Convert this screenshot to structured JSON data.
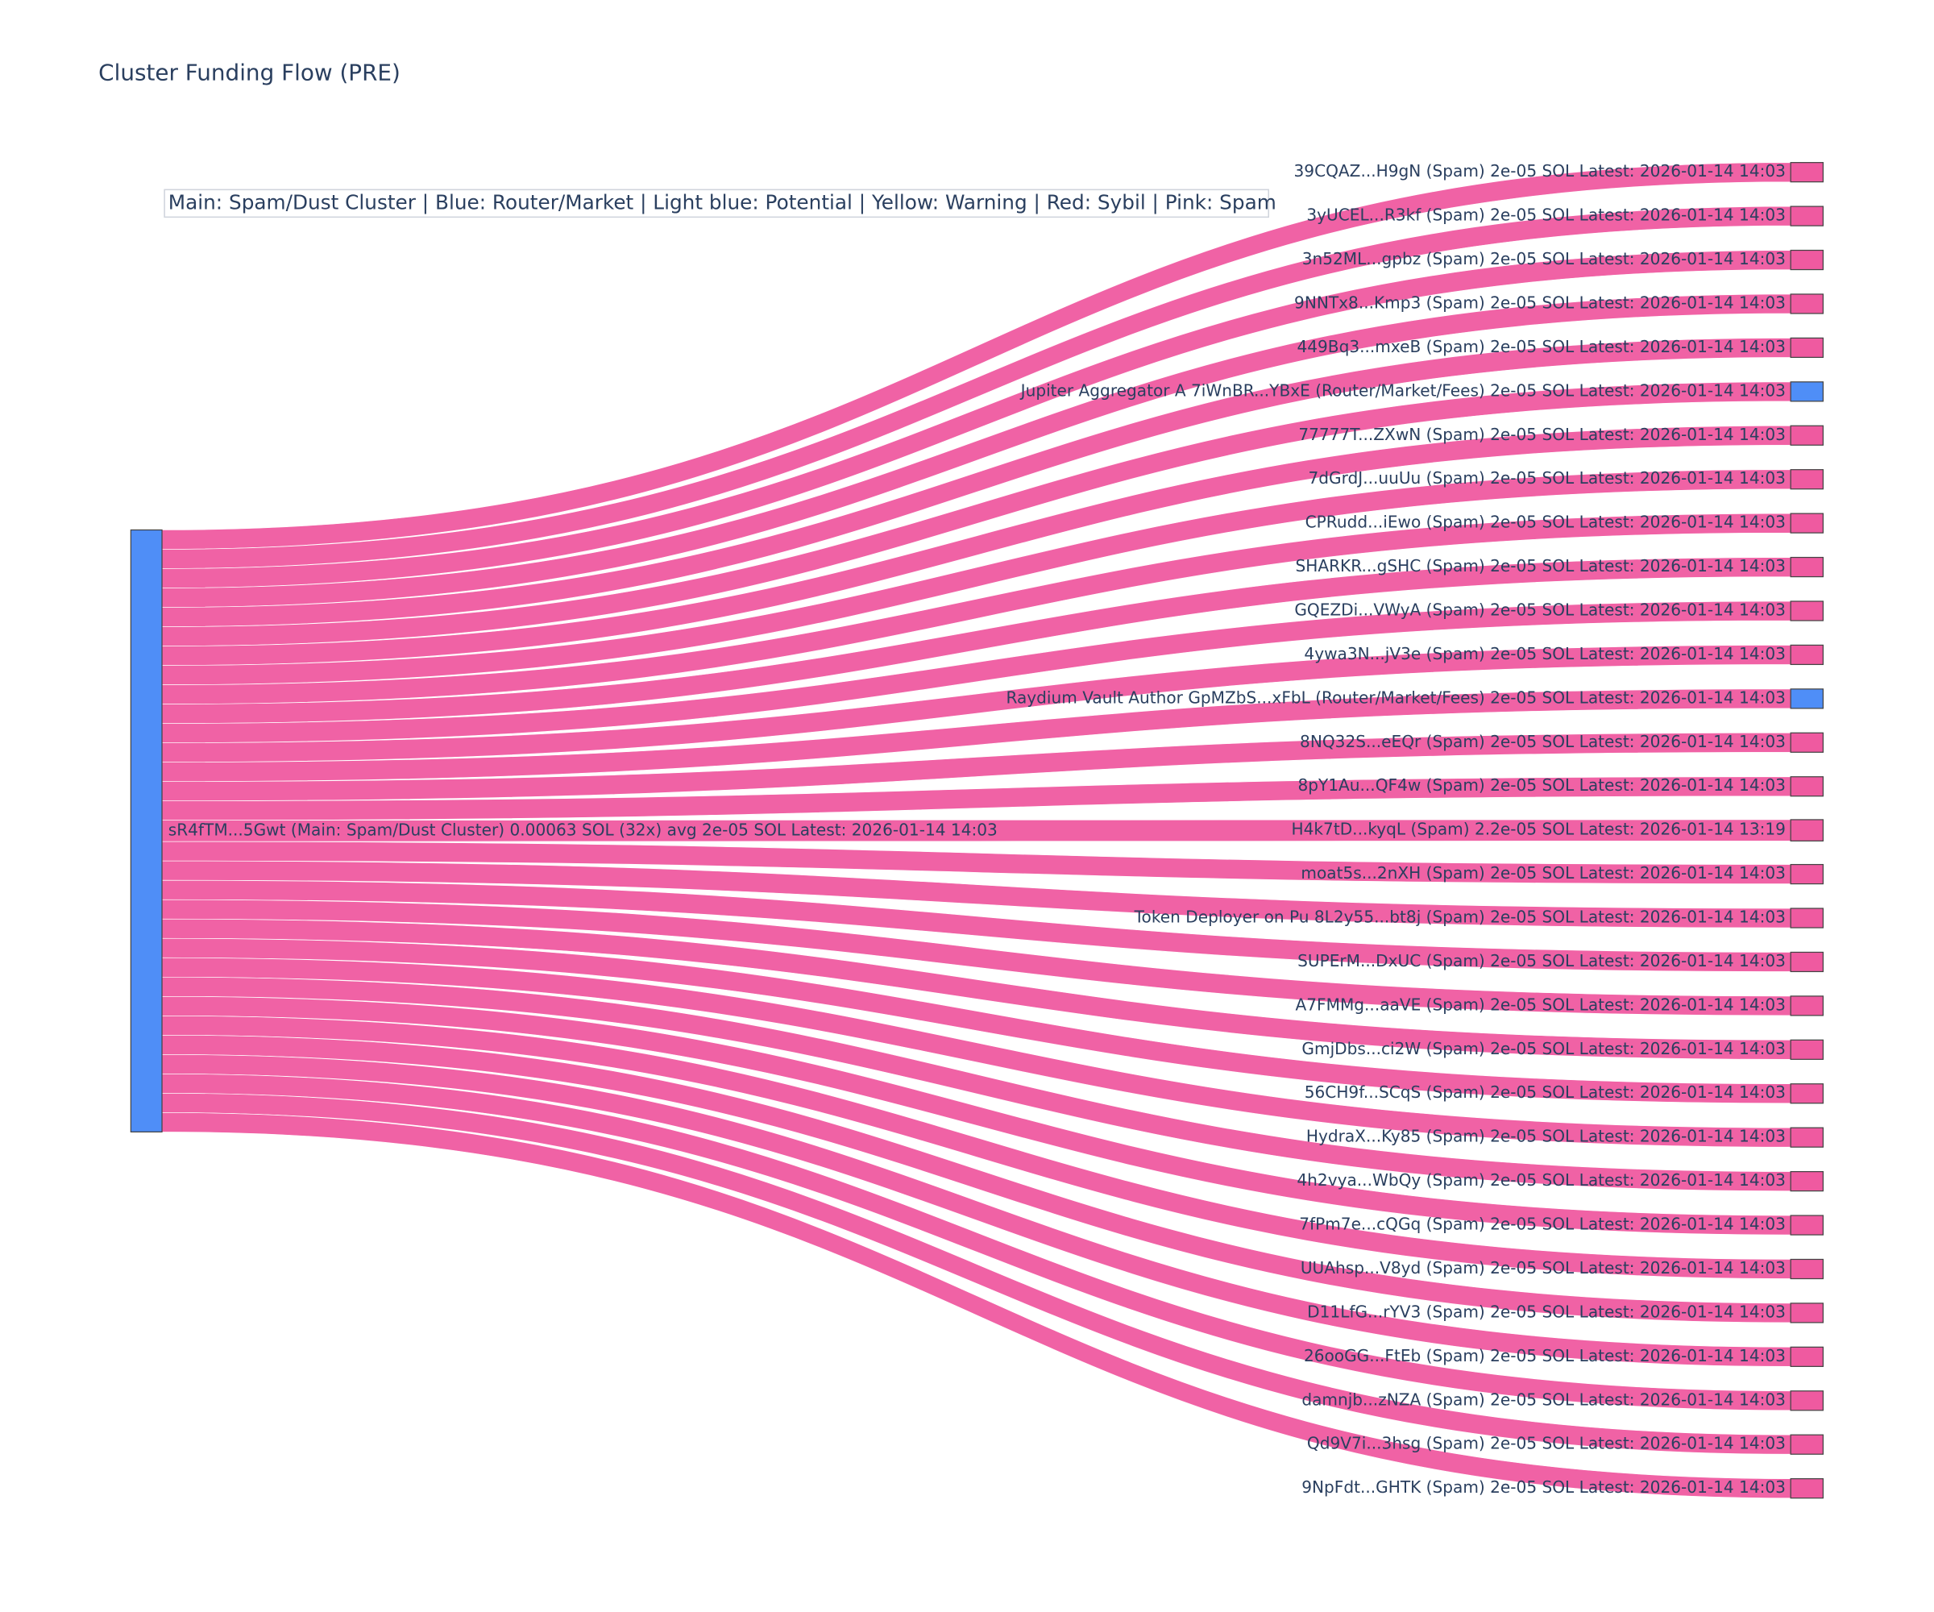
{
  "chart_data": {
    "type": "sankey",
    "title": "Cluster Funding Flow (PRE)",
    "annotation": "Main: Spam/Dust Cluster  |  Blue: Router/Market | Light blue: Potential | Yellow: Warning | Red: Sybil | Pink: Spam",
    "source": {
      "label": "sR4fTM...5Gwt (Main: Spam/Dust Cluster) 0.00063 SOL (32x) avg 2e-05 SOL Latest: 2026-01-14 14:03",
      "color": "#4f8ef7"
    },
    "targets": [
      "39CQAZ...H9gN (Spam) 2e-05 SOL Latest: 2026-01-14 14:03",
      "3yUCEL...R3kf (Spam) 2e-05 SOL Latest: 2026-01-14 14:03",
      "3n52ML...gpbz (Spam) 2e-05 SOL Latest: 2026-01-14 14:03",
      "9NNTx8...Kmp3 (Spam) 2e-05 SOL Latest: 2026-01-14 14:03",
      "449Bq3...mxeB (Spam) 2e-05 SOL Latest: 2026-01-14 14:03",
      "Jupiter Aggregator A 7iWnBR...YBxE (Router/Market/Fees) 2e-05 SOL Latest: 2026-01-14 14:03",
      "77777T...ZXwN (Spam) 2e-05 SOL Latest: 2026-01-14 14:03",
      "7dGrdJ...uuUu (Spam) 2e-05 SOL Latest: 2026-01-14 14:03",
      "CPRudd...iEwo (Spam) 2e-05 SOL Latest: 2026-01-14 14:03",
      "SHARKR...gSHC (Spam) 2e-05 SOL Latest: 2026-01-14 14:03",
      "GQEZDi...VWyA (Spam) 2e-05 SOL Latest: 2026-01-14 14:03",
      "4ywa3N...jV3e (Spam) 2e-05 SOL Latest: 2026-01-14 14:03",
      "Raydium Vault Author GpMZbS...xFbL (Router/Market/Fees) 2e-05 SOL Latest: 2026-01-14 14:03",
      "8NQ32S...eEQr (Spam) 2e-05 SOL Latest: 2026-01-14 14:03",
      "8pY1Au...QF4w (Spam) 2e-05 SOL Latest: 2026-01-14 14:03",
      "H4k7tD...kyqL (Spam) 2.2e-05 SOL Latest: 2026-01-14 13:19",
      "moat5s...2nXH (Spam) 2e-05 SOL Latest: 2026-01-14 14:03",
      "Token Deployer on Pu 8L2y55...bt8j (Spam) 2e-05 SOL Latest: 2026-01-14 14:03",
      "SUPErM...DxUC (Spam) 2e-05 SOL Latest: 2026-01-14 14:03",
      "A7FMMg...aaVE (Spam) 2e-05 SOL Latest: 2026-01-14 14:03",
      "GmjDbs...ci2W (Spam) 2e-05 SOL Latest: 2026-01-14 14:03",
      "56CH9f...SCqS (Spam) 2e-05 SOL Latest: 2026-01-14 14:03",
      "HydraX...Ky85 (Spam) 2e-05 SOL Latest: 2026-01-14 14:03",
      "4h2vya...WbQy (Spam) 2e-05 SOL Latest: 2026-01-14 14:03",
      "7fPm7e...cQGq (Spam) 2e-05 SOL Latest: 2026-01-14 14:03",
      "UUAhsp...V8yd (Spam) 2e-05 SOL Latest: 2026-01-14 14:03",
      "D11LfG...rYV3 (Spam) 2e-05 SOL Latest: 2026-01-14 14:03",
      "26ooGG...FtEb (Spam) 2e-05 SOL Latest: 2026-01-14 14:03",
      "damnjb...zNZA (Spam) 2e-05 SOL Latest: 2026-01-14 14:03",
      "Qd9V7i...3hsg (Spam) 2e-05 SOL Latest: 2026-01-14 14:03",
      "9NpFdt...GHTK (Spam) 2e-05 SOL Latest: 2026-01-14 14:03"
    ],
    "target_colors": [
      "#ef5aa0",
      "#ef5aa0",
      "#ef5aa0",
      "#ef5aa0",
      "#ef5aa0",
      "#4f8ef7",
      "#ef5aa0",
      "#ef5aa0",
      "#ef5aa0",
      "#ef5aa0",
      "#ef5aa0",
      "#ef5aa0",
      "#4f8ef7",
      "#ef5aa0",
      "#ef5aa0",
      "#ef5aa0",
      "#ef5aa0",
      "#ef5aa0",
      "#ef5aa0",
      "#ef5aa0",
      "#ef5aa0",
      "#ef5aa0",
      "#ef5aa0",
      "#ef5aa0",
      "#ef5aa0",
      "#ef5aa0",
      "#ef5aa0",
      "#ef5aa0",
      "#ef5aa0",
      "#ef5aa0",
      "#ef5aa0"
    ],
    "values": [
      2e-05,
      2e-05,
      2e-05,
      2e-05,
      2e-05,
      2e-05,
      2e-05,
      2e-05,
      2e-05,
      2e-05,
      2e-05,
      2e-05,
      2e-05,
      2e-05,
      2e-05,
      2.2e-05,
      2e-05,
      2e-05,
      2e-05,
      2e-05,
      2e-05,
      2e-05,
      2e-05,
      2e-05,
      2e-05,
      2e-05,
      2e-05,
      2e-05,
      2e-05,
      2e-05,
      2e-05
    ],
    "link_color": "#ef5aa0"
  }
}
